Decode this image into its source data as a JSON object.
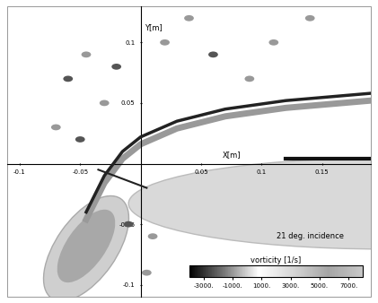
{
  "chart_data": {
    "type": "contour",
    "xlabel": "X[m]",
    "ylabel": "Y[m]",
    "annotation": "21 deg. incidence",
    "xlim": [
      -0.11,
      0.19
    ],
    "ylim": [
      -0.11,
      0.13
    ],
    "xticks": [
      -0.1,
      -0.05,
      0.05,
      0.1,
      0.15
    ],
    "yticks": [
      -0.1,
      -0.05,
      0.05,
      0.1
    ],
    "colorbar": {
      "label": "vorticity [1/s]",
      "range": [
        -4000,
        8000
      ],
      "ticks": [
        {
          "value": -3000,
          "label": "-3000."
        },
        {
          "value": -1000,
          "label": "-1000."
        },
        {
          "value": 1000,
          "label": "1000."
        },
        {
          "value": 3000,
          "label": "3000."
        },
        {
          "value": 5000,
          "label": "5000."
        },
        {
          "value": 7000,
          "label": "7000."
        }
      ]
    }
  }
}
